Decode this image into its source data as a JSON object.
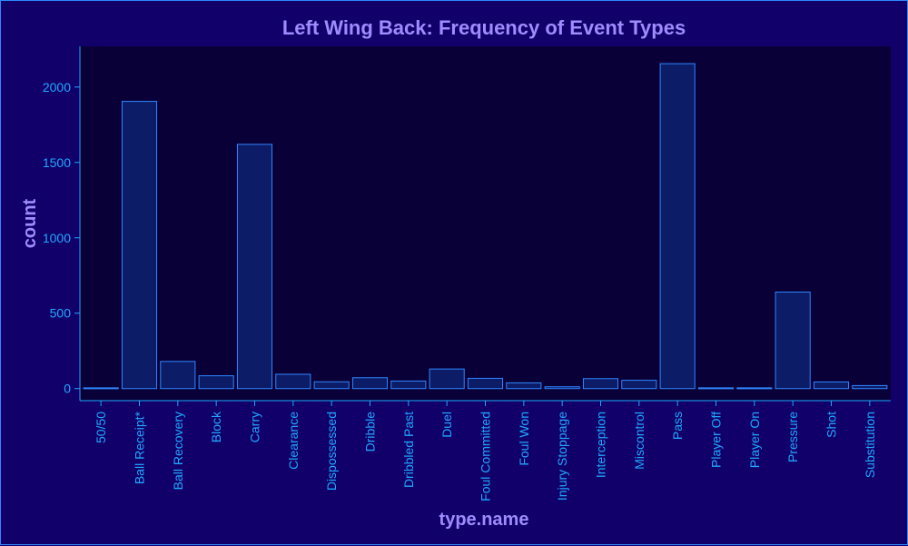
{
  "chart_data": {
    "type": "bar",
    "title": "Left Wing Back: Frequency of Event Types",
    "xlabel": "type.name",
    "ylabel": "count",
    "ylim": [
      -80,
      2270
    ],
    "yticks": [
      0,
      500,
      1000,
      1500,
      2000
    ],
    "grid": false,
    "categories": [
      "50/50",
      "Ball Receipt*",
      "Ball Recovery",
      "Block",
      "Carry",
      "Clearance",
      "Dispossessed",
      "Dribble",
      "Dribbled Past",
      "Duel",
      "Foul Committed",
      "Foul Won",
      "Injury Stoppage",
      "Interception",
      "Miscontrol",
      "Pass",
      "Player Off",
      "Player On",
      "Pressure",
      "Shot",
      "Substitution"
    ],
    "values": [
      5,
      1905,
      180,
      85,
      1620,
      95,
      45,
      72,
      50,
      130,
      68,
      38,
      12,
      66,
      55,
      2155,
      5,
      5,
      640,
      44,
      20
    ]
  },
  "colors": {
    "background": "#12006a",
    "plot_background": "#0a0038",
    "bar_fill": "#0c1c66",
    "bar_stroke": "#2f86ff",
    "tick_text": "#1fa8ff",
    "title_text": "#9e8cff"
  }
}
